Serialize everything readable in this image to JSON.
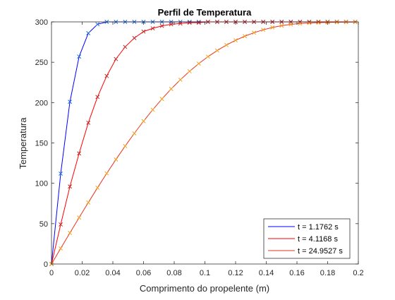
{
  "chart_data": {
    "type": "line",
    "title": "Perfil de Temperatura",
    "xlabel": "Comprimento do propelente (m)",
    "ylabel": "Temperatura",
    "xlim": [
      0,
      0.2
    ],
    "ylim": [
      0,
      300
    ],
    "xticks": [
      0,
      0.02,
      0.04,
      0.06,
      0.08,
      0.1,
      0.12,
      0.14,
      0.16,
      0.18,
      0.2
    ],
    "xtick_labels": [
      "0",
      "0.02",
      "0.04",
      "0.06",
      "0.08",
      "0.1",
      "0.12",
      "0.14",
      "0.16",
      "0.18",
      "0.2"
    ],
    "yticks": [
      0,
      50,
      100,
      150,
      200,
      250,
      300
    ],
    "ytick_labels": [
      "0",
      "50",
      "100",
      "150",
      "200",
      "250",
      "300"
    ],
    "grid": false,
    "legend_position": "bottom-right",
    "series": [
      {
        "name": "t = 1.1762 s",
        "color": "#0000ff",
        "marker_color": "#1f6fd6",
        "x": [
          0,
          0.006,
          0.012,
          0.018,
          0.024,
          0.03,
          0.036,
          0.042,
          0.048,
          0.054,
          0.06,
          0.066,
          0.072,
          0.078,
          0.084,
          0.09,
          0.096,
          0.102,
          0.108,
          0.114,
          0.12,
          0.126,
          0.132,
          0.138,
          0.144,
          0.15,
          0.156,
          0.162,
          0.168,
          0.174,
          0.18,
          0.186,
          0.192,
          0.198
        ],
        "y": [
          0,
          112,
          201,
          257,
          286,
          297,
          300,
          300,
          300,
          300,
          300,
          300,
          300,
          300,
          300,
          300,
          300,
          300,
          300,
          300,
          300,
          300,
          300,
          300,
          300,
          300,
          300,
          300,
          300,
          300,
          300,
          300,
          300,
          300
        ]
      },
      {
        "name": "t = 4.1168 s",
        "color": "#ff0000",
        "marker_color": "#c22a2a",
        "x": [
          0,
          0.006,
          0.012,
          0.018,
          0.024,
          0.03,
          0.036,
          0.042,
          0.048,
          0.054,
          0.06,
          0.066,
          0.072,
          0.078,
          0.084,
          0.09,
          0.096,
          0.102,
          0.108,
          0.114,
          0.12,
          0.126,
          0.132,
          0.138,
          0.144,
          0.15,
          0.156,
          0.162,
          0.168,
          0.174,
          0.18,
          0.186,
          0.192,
          0.198
        ],
        "y": [
          0,
          49,
          96,
          137,
          175,
          207,
          233,
          254,
          269,
          280,
          288,
          292,
          295,
          297,
          298,
          299,
          299,
          300,
          300,
          300,
          300,
          300,
          300,
          300,
          300,
          300,
          300,
          300,
          300,
          300,
          300,
          300,
          300,
          300
        ]
      },
      {
        "name": "t = 24.9527 s",
        "color": "#e8341c",
        "marker_color": "#f0a020",
        "x": [
          0,
          0.006,
          0.012,
          0.018,
          0.024,
          0.03,
          0.036,
          0.042,
          0.048,
          0.054,
          0.06,
          0.066,
          0.072,
          0.078,
          0.084,
          0.09,
          0.096,
          0.102,
          0.108,
          0.114,
          0.12,
          0.126,
          0.132,
          0.138,
          0.144,
          0.15,
          0.156,
          0.162,
          0.168,
          0.174,
          0.18,
          0.186,
          0.192,
          0.198
        ],
        "y": [
          0,
          19.3,
          38.5,
          57.5,
          76.2,
          94.5,
          112.3,
          129.5,
          146.1,
          161.9,
          177,
          191.2,
          204.5,
          216.9,
          228.3,
          238.8,
          248.3,
          256.9,
          264.5,
          271.3,
          277.2,
          282.3,
          286.6,
          290.2,
          293.1,
          295.3,
          296.9,
          298,
          298.7,
          299.1,
          299.4,
          299.6,
          299.7,
          299.8
        ]
      }
    ]
  }
}
